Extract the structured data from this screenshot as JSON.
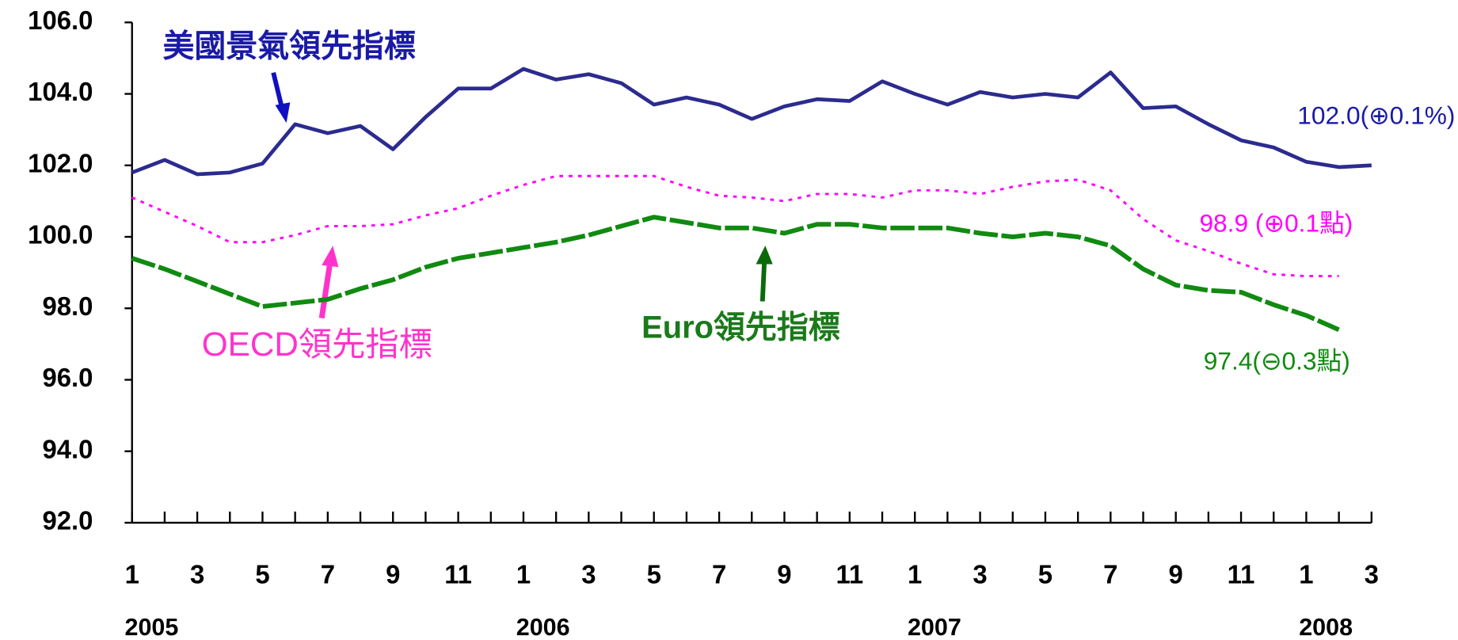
{
  "chart_data": {
    "type": "line",
    "categories": [
      "1",
      null,
      "3",
      null,
      "5",
      null,
      "7",
      null,
      "9",
      null,
      "11",
      null,
      "1",
      null,
      "3",
      null,
      "5",
      null,
      "7",
      null,
      "9",
      null,
      "11",
      null,
      "1",
      null,
      "3",
      null,
      "5",
      null,
      "7",
      null,
      "9",
      null,
      "11",
      null,
      "1",
      null,
      "3"
    ],
    "years": [
      "2005",
      "2006",
      "2007",
      "2008"
    ],
    "ylim": [
      92,
      106
    ],
    "yticks": [
      {
        "value": 92,
        "label": "92.0"
      },
      {
        "value": 94,
        "label": "94.0"
      },
      {
        "value": 96,
        "label": "96.0"
      },
      {
        "value": 98,
        "label": "98.0"
      },
      {
        "value": 100,
        "label": "100.0"
      },
      {
        "value": 102,
        "label": "102.0"
      },
      {
        "value": 104,
        "label": "104.0"
      },
      {
        "value": 106,
        "label": "106.0"
      }
    ],
    "series": [
      {
        "name": "美國景氣領先指標",
        "color": "#2b2b8f",
        "style": "solid",
        "end_label": "102.0(⊕0.1%)",
        "values": [
          101.8,
          102.15,
          101.75,
          101.8,
          102.05,
          103.15,
          102.9,
          103.1,
          102.45,
          103.35,
          104.15,
          104.15,
          104.7,
          104.4,
          104.55,
          104.3,
          103.7,
          103.9,
          103.7,
          103.3,
          103.65,
          103.85,
          103.8,
          104.35,
          104.0,
          103.7,
          104.05,
          103.9,
          104.0,
          103.9,
          104.6,
          103.6,
          103.65,
          103.15,
          102.7,
          102.5,
          102.1,
          101.95,
          102.0
        ]
      },
      {
        "name": "OECD領先指標",
        "color": "#ff00ff",
        "style": "dotted",
        "end_label": "98.9 (⊕0.1點)",
        "values": [
          101.1,
          100.7,
          100.3,
          99.85,
          99.85,
          100.05,
          100.3,
          100.3,
          100.35,
          100.6,
          100.8,
          101.15,
          101.45,
          101.7,
          101.7,
          101.7,
          101.7,
          101.4,
          101.15,
          101.1,
          101.0,
          101.2,
          101.2,
          101.1,
          101.3,
          101.3,
          101.2,
          101.4,
          101.55,
          101.6,
          101.3,
          100.5,
          99.9,
          99.6,
          99.25,
          98.95,
          98.9,
          98.9,
          null
        ]
      },
      {
        "name": "Euro領先指標",
        "color": "#108a10",
        "style": "dashed",
        "end_label": "97.4(⊖0.3點)",
        "values": [
          99.4,
          99.1,
          98.75,
          98.4,
          98.05,
          98.15,
          98.25,
          98.55,
          98.8,
          99.15,
          99.4,
          99.55,
          99.7,
          99.85,
          100.05,
          100.3,
          100.55,
          100.4,
          100.25,
          100.25,
          100.1,
          100.35,
          100.35,
          100.25,
          100.25,
          100.25,
          100.1,
          100.0,
          100.1,
          100.0,
          99.75,
          99.1,
          98.65,
          98.5,
          98.45,
          98.1,
          97.8,
          97.4,
          null
        ]
      }
    ]
  }
}
